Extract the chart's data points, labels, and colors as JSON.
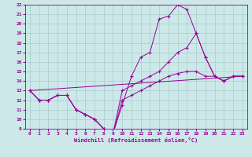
{
  "xlabel": "Windchill (Refroidissement éolien,°C)",
  "bg_color": "#cce8e8",
  "line_color": "#990099",
  "grid_color": "#aacccc",
  "xlim": [
    -0.5,
    23.5
  ],
  "ylim": [
    9,
    22
  ],
  "yticks": [
    9,
    10,
    11,
    12,
    13,
    14,
    15,
    16,
    17,
    18,
    19,
    20,
    21,
    22
  ],
  "xticks": [
    0,
    1,
    2,
    3,
    4,
    5,
    6,
    7,
    8,
    9,
    10,
    11,
    12,
    13,
    14,
    15,
    16,
    17,
    18,
    19,
    20,
    21,
    22,
    23
  ],
  "curve1_x": [
    0,
    1,
    2,
    3,
    4,
    5,
    6,
    7,
    8,
    9,
    10,
    11,
    12,
    13,
    14,
    15,
    16,
    17,
    18,
    19,
    20,
    21,
    22,
    23
  ],
  "curve1_y": [
    13,
    12,
    12,
    12.5,
    12.5,
    11,
    10.5,
    10,
    9,
    8.5,
    11.5,
    14.5,
    16.5,
    17,
    20.5,
    20.8,
    22,
    21.5,
    19,
    16.5,
    14.5,
    14,
    14.5,
    14.5
  ],
  "curve2_x": [
    0,
    1,
    2,
    3,
    4,
    5,
    6,
    7,
    8,
    9,
    10,
    11,
    12,
    13,
    14,
    15,
    16,
    17,
    18,
    19,
    20,
    21,
    22,
    23
  ],
  "curve2_y": [
    13,
    12,
    12,
    12.5,
    12.5,
    11,
    10.5,
    10,
    9,
    8.5,
    13,
    13.5,
    14,
    14.5,
    15,
    16,
    17,
    17.5,
    19,
    16.5,
    14.5,
    14,
    14.5,
    14.5
  ],
  "curve3_x": [
    0,
    1,
    2,
    3,
    4,
    5,
    6,
    7,
    8,
    9,
    10,
    11,
    12,
    13,
    14,
    15,
    16,
    17,
    18,
    19,
    20,
    21,
    22,
    23
  ],
  "curve3_y": [
    13,
    12,
    12,
    12.5,
    12.5,
    11,
    10.5,
    10,
    9,
    8.5,
    12,
    12.5,
    13,
    13.5,
    14,
    14.5,
    14.8,
    15,
    15,
    14.5,
    14.5,
    14,
    14.5,
    14.5
  ],
  "curve4_x": [
    0,
    23
  ],
  "curve4_y": [
    13,
    14.5
  ]
}
